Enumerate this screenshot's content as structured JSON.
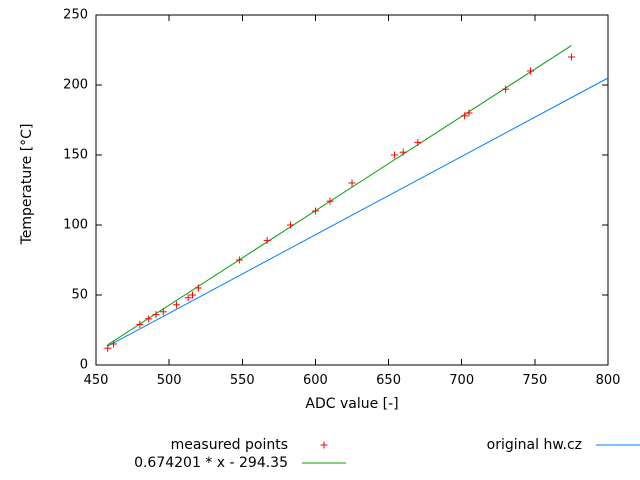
{
  "chart_data": {
    "type": "scatter",
    "title": "",
    "xlabel": "ADC value [-]",
    "ylabel": "Temperature [°C]",
    "xlim": [
      450,
      800
    ],
    "ylim": [
      0,
      250
    ],
    "xticks": [
      "450",
      "500",
      "550",
      "600",
      "650",
      "700",
      "750",
      "800"
    ],
    "yticks": [
      "0",
      "50",
      "100",
      "150",
      "200",
      "250"
    ],
    "grid": false,
    "legend_position": "below",
    "series": [
      {
        "name": "measured points",
        "kind": "points",
        "marker": "plus",
        "color": "#ff0000",
        "points": [
          [
            458,
            12
          ],
          [
            462,
            15
          ],
          [
            480,
            29
          ],
          [
            486,
            33
          ],
          [
            491,
            36
          ],
          [
            496,
            38
          ],
          [
            505,
            43
          ],
          [
            513,
            48
          ],
          [
            516,
            50
          ],
          [
            520,
            55
          ],
          [
            548,
            75
          ],
          [
            567,
            89
          ],
          [
            583,
            100
          ],
          [
            600,
            110
          ],
          [
            610,
            117
          ],
          [
            625,
            130
          ],
          [
            654,
            150
          ],
          [
            660,
            152
          ],
          [
            670,
            159
          ],
          [
            702,
            178
          ],
          [
            705,
            180
          ],
          [
            730,
            197
          ],
          [
            747,
            210
          ],
          [
            775,
            220
          ]
        ]
      },
      {
        "name": "0.674201 * x - 294.35",
        "kind": "line",
        "color": "#00a000",
        "equation": {
          "slope": 0.674201,
          "intercept": -294.35
        },
        "x_range": [
          458,
          775
        ]
      },
      {
        "name": "original hw.cz",
        "kind": "line",
        "color": "#0080ff",
        "points": [
          [
            458,
            13.5
          ],
          [
            800,
            205
          ]
        ]
      }
    ]
  }
}
